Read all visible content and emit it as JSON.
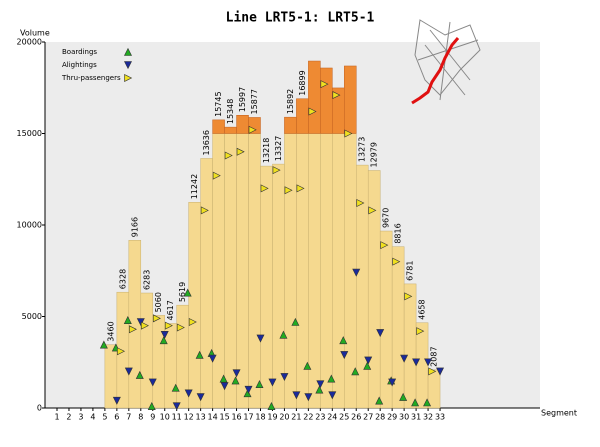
{
  "chart_data": {
    "type": "bar",
    "title": "Line LRT5-1: LRT5-1",
    "y_label": "Volume",
    "x_label": "Segment",
    "categories": [
      1,
      2,
      3,
      4,
      5,
      6,
      7,
      8,
      9,
      10,
      11,
      12,
      13,
      14,
      15,
      16,
      17,
      18,
      19,
      20,
      21,
      22,
      23,
      24,
      25,
      26,
      27,
      28,
      29,
      30,
      31,
      32,
      33
    ],
    "values": [
      null,
      null,
      null,
      null,
      3460,
      6328,
      9166,
      6283,
      5060,
      4617,
      5619,
      11242,
      13636,
      15745,
      15348,
      15997,
      15877,
      13218,
      13327,
      15892,
      16899,
      18960,
      18580,
      17490,
      18690,
      13273,
      12979,
      9670,
      8816,
      6781,
      4658,
      2087,
      null
    ],
    "value_labels": [
      null,
      null,
      null,
      null,
      "3460",
      "6328",
      "9166",
      "6283",
      "5060",
      "4617",
      "5619",
      "11242",
      "13636",
      "15745",
      "15348",
      "15997",
      "15877",
      "13218",
      "13327",
      "15892",
      "16899",
      null,
      null,
      null,
      null,
      "13273",
      "12979",
      "9670",
      "8816",
      "6781",
      "4658",
      "2087",
      null
    ],
    "color": "#f5d98f",
    "threshold": 15000,
    "over_color": "#ee8a33",
    "series": [
      {
        "name": "Boardings",
        "color": "#22aa22",
        "marker": "up",
        "values": [
          null,
          null,
          null,
          null,
          3460,
          3300,
          4800,
          1800,
          100,
          3700,
          1100,
          6300,
          2900,
          3000,
          1600,
          1500,
          800,
          1300,
          100,
          4000,
          4700,
          2300,
          1000,
          1600,
          3700,
          2000,
          2300,
          400,
          1500,
          600,
          300,
          300,
          null
        ]
      },
      {
        "name": "Alightings",
        "color": "#1a2a9a",
        "marker": "down",
        "values": [
          null,
          null,
          null,
          null,
          null,
          400,
          2000,
          4700,
          1400,
          4000,
          100,
          800,
          600,
          2700,
          1200,
          1900,
          1000,
          3800,
          1400,
          1700,
          700,
          600,
          1300,
          700,
          2900,
          7400,
          2600,
          4100,
          1400,
          2700,
          2500,
          2500,
          2000
        ]
      },
      {
        "name": "Thru-passengers",
        "color": "#f0e020",
        "marker": "right",
        "values": [
          null,
          null,
          null,
          null,
          null,
          3100,
          4300,
          4500,
          4900,
          4500,
          4400,
          4700,
          10800,
          12700,
          13800,
          14000,
          15200,
          12000,
          13000,
          11900,
          12000,
          16200,
          17700,
          17100,
          15000,
          11200,
          10800,
          8900,
          8000,
          6100,
          4200,
          2000,
          null
        ]
      }
    ],
    "ylim": [
      0,
      20000
    ],
    "yticks": [
      0,
      5000,
      10000,
      15000,
      20000
    ]
  }
}
